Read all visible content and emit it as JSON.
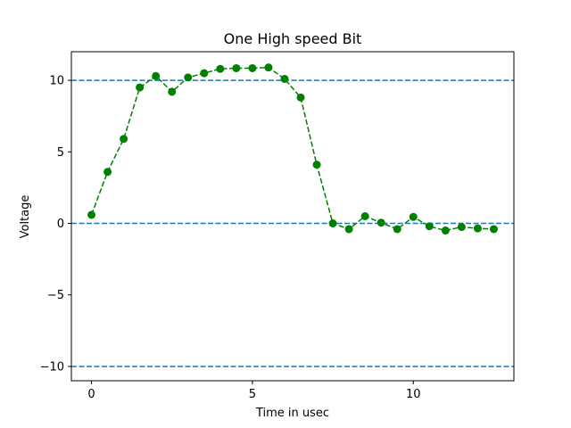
{
  "chart_data": {
    "type": "line",
    "title": "One High speed Bit",
    "xlabel": "Time in usec",
    "ylabel": "Voltage",
    "xlim": [
      -0.625,
      13.125
    ],
    "ylim": [
      -11,
      12
    ],
    "xticks": [
      0,
      5,
      10
    ],
    "yticks": [
      -10,
      -5,
      0,
      5,
      10
    ],
    "xtick_labels": [
      "0",
      "5",
      "10"
    ],
    "ytick_labels": [
      "−10",
      "−5",
      "0",
      "5",
      "10"
    ],
    "grid": false,
    "reference_lines": [
      {
        "y": 10,
        "color": "#1f77b4",
        "style": "dashed"
      },
      {
        "y": 0,
        "color": "#1f77b4",
        "style": "dashed"
      },
      {
        "y": -10,
        "color": "#1f77b4",
        "style": "dashed"
      }
    ],
    "series": [
      {
        "color": "#008000",
        "line_style": "dashed",
        "marker": "circle",
        "x": [
          0,
          0.5,
          1,
          1.5,
          2,
          2.5,
          3,
          3.5,
          4,
          4.5,
          5,
          5.5,
          6,
          6.5,
          7,
          7.5,
          8,
          8.5,
          9,
          9.5,
          10,
          10.5,
          11,
          11.5,
          12,
          12.5
        ],
        "y": [
          0.6,
          3.6,
          5.9,
          9.5,
          10.3,
          9.2,
          10.2,
          10.5,
          10.8,
          10.85,
          10.85,
          10.9,
          10.1,
          8.8,
          4.1,
          0.0,
          -0.4,
          0.5,
          0.05,
          -0.4,
          0.45,
          -0.2,
          -0.5,
          -0.25,
          -0.35,
          -0.4
        ]
      }
    ]
  }
}
